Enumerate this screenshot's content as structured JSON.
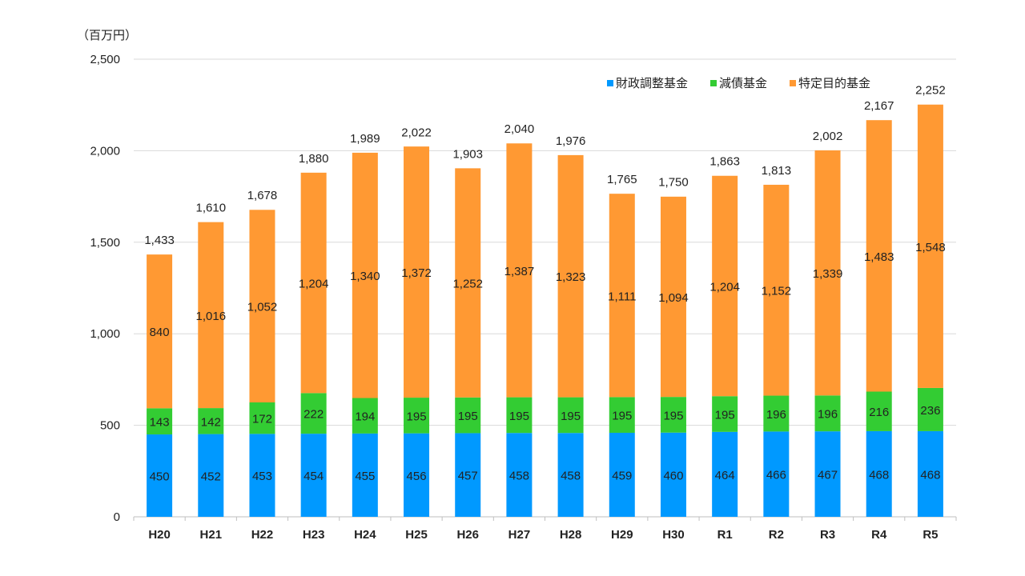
{
  "chart_data": {
    "type": "bar",
    "stacked": true,
    "unit_label": "（百万円）",
    "categories": [
      "H20",
      "H21",
      "H22",
      "H23",
      "H24",
      "H25",
      "H26",
      "H27",
      "H28",
      "H29",
      "H30",
      "R1",
      "R2",
      "R3",
      "R4",
      "R5"
    ],
    "series": [
      {
        "name": "財政調整基金",
        "color": "#0099FF",
        "values": [
          450,
          452,
          453,
          454,
          455,
          456,
          457,
          458,
          458,
          459,
          460,
          464,
          466,
          467,
          468,
          468
        ]
      },
      {
        "name": "減債基金",
        "color": "#33CC33",
        "values": [
          143,
          142,
          172,
          222,
          194,
          195,
          195,
          195,
          195,
          195,
          195,
          195,
          196,
          196,
          216,
          236
        ]
      },
      {
        "name": "特定目的基金",
        "color": "#FF9933",
        "values": [
          840,
          1016,
          1052,
          1204,
          1340,
          1372,
          1252,
          1387,
          1323,
          1111,
          1094,
          1204,
          1152,
          1339,
          1483,
          1548
        ]
      }
    ],
    "totals": [
      1433,
      1610,
      1678,
      1880,
      1989,
      2022,
      1903,
      2040,
      1976,
      1765,
      1750,
      1863,
      1813,
      2002,
      2167,
      2252
    ],
    "ylim": [
      0,
      2500
    ],
    "yticks": [
      0,
      500,
      1000,
      1500,
      2000,
      2500
    ],
    "ytick_labels": [
      "0",
      "500",
      "1,000",
      "1,500",
      "2,000",
      "2,500"
    ],
    "legend_position": "top-right",
    "grid": true
  }
}
